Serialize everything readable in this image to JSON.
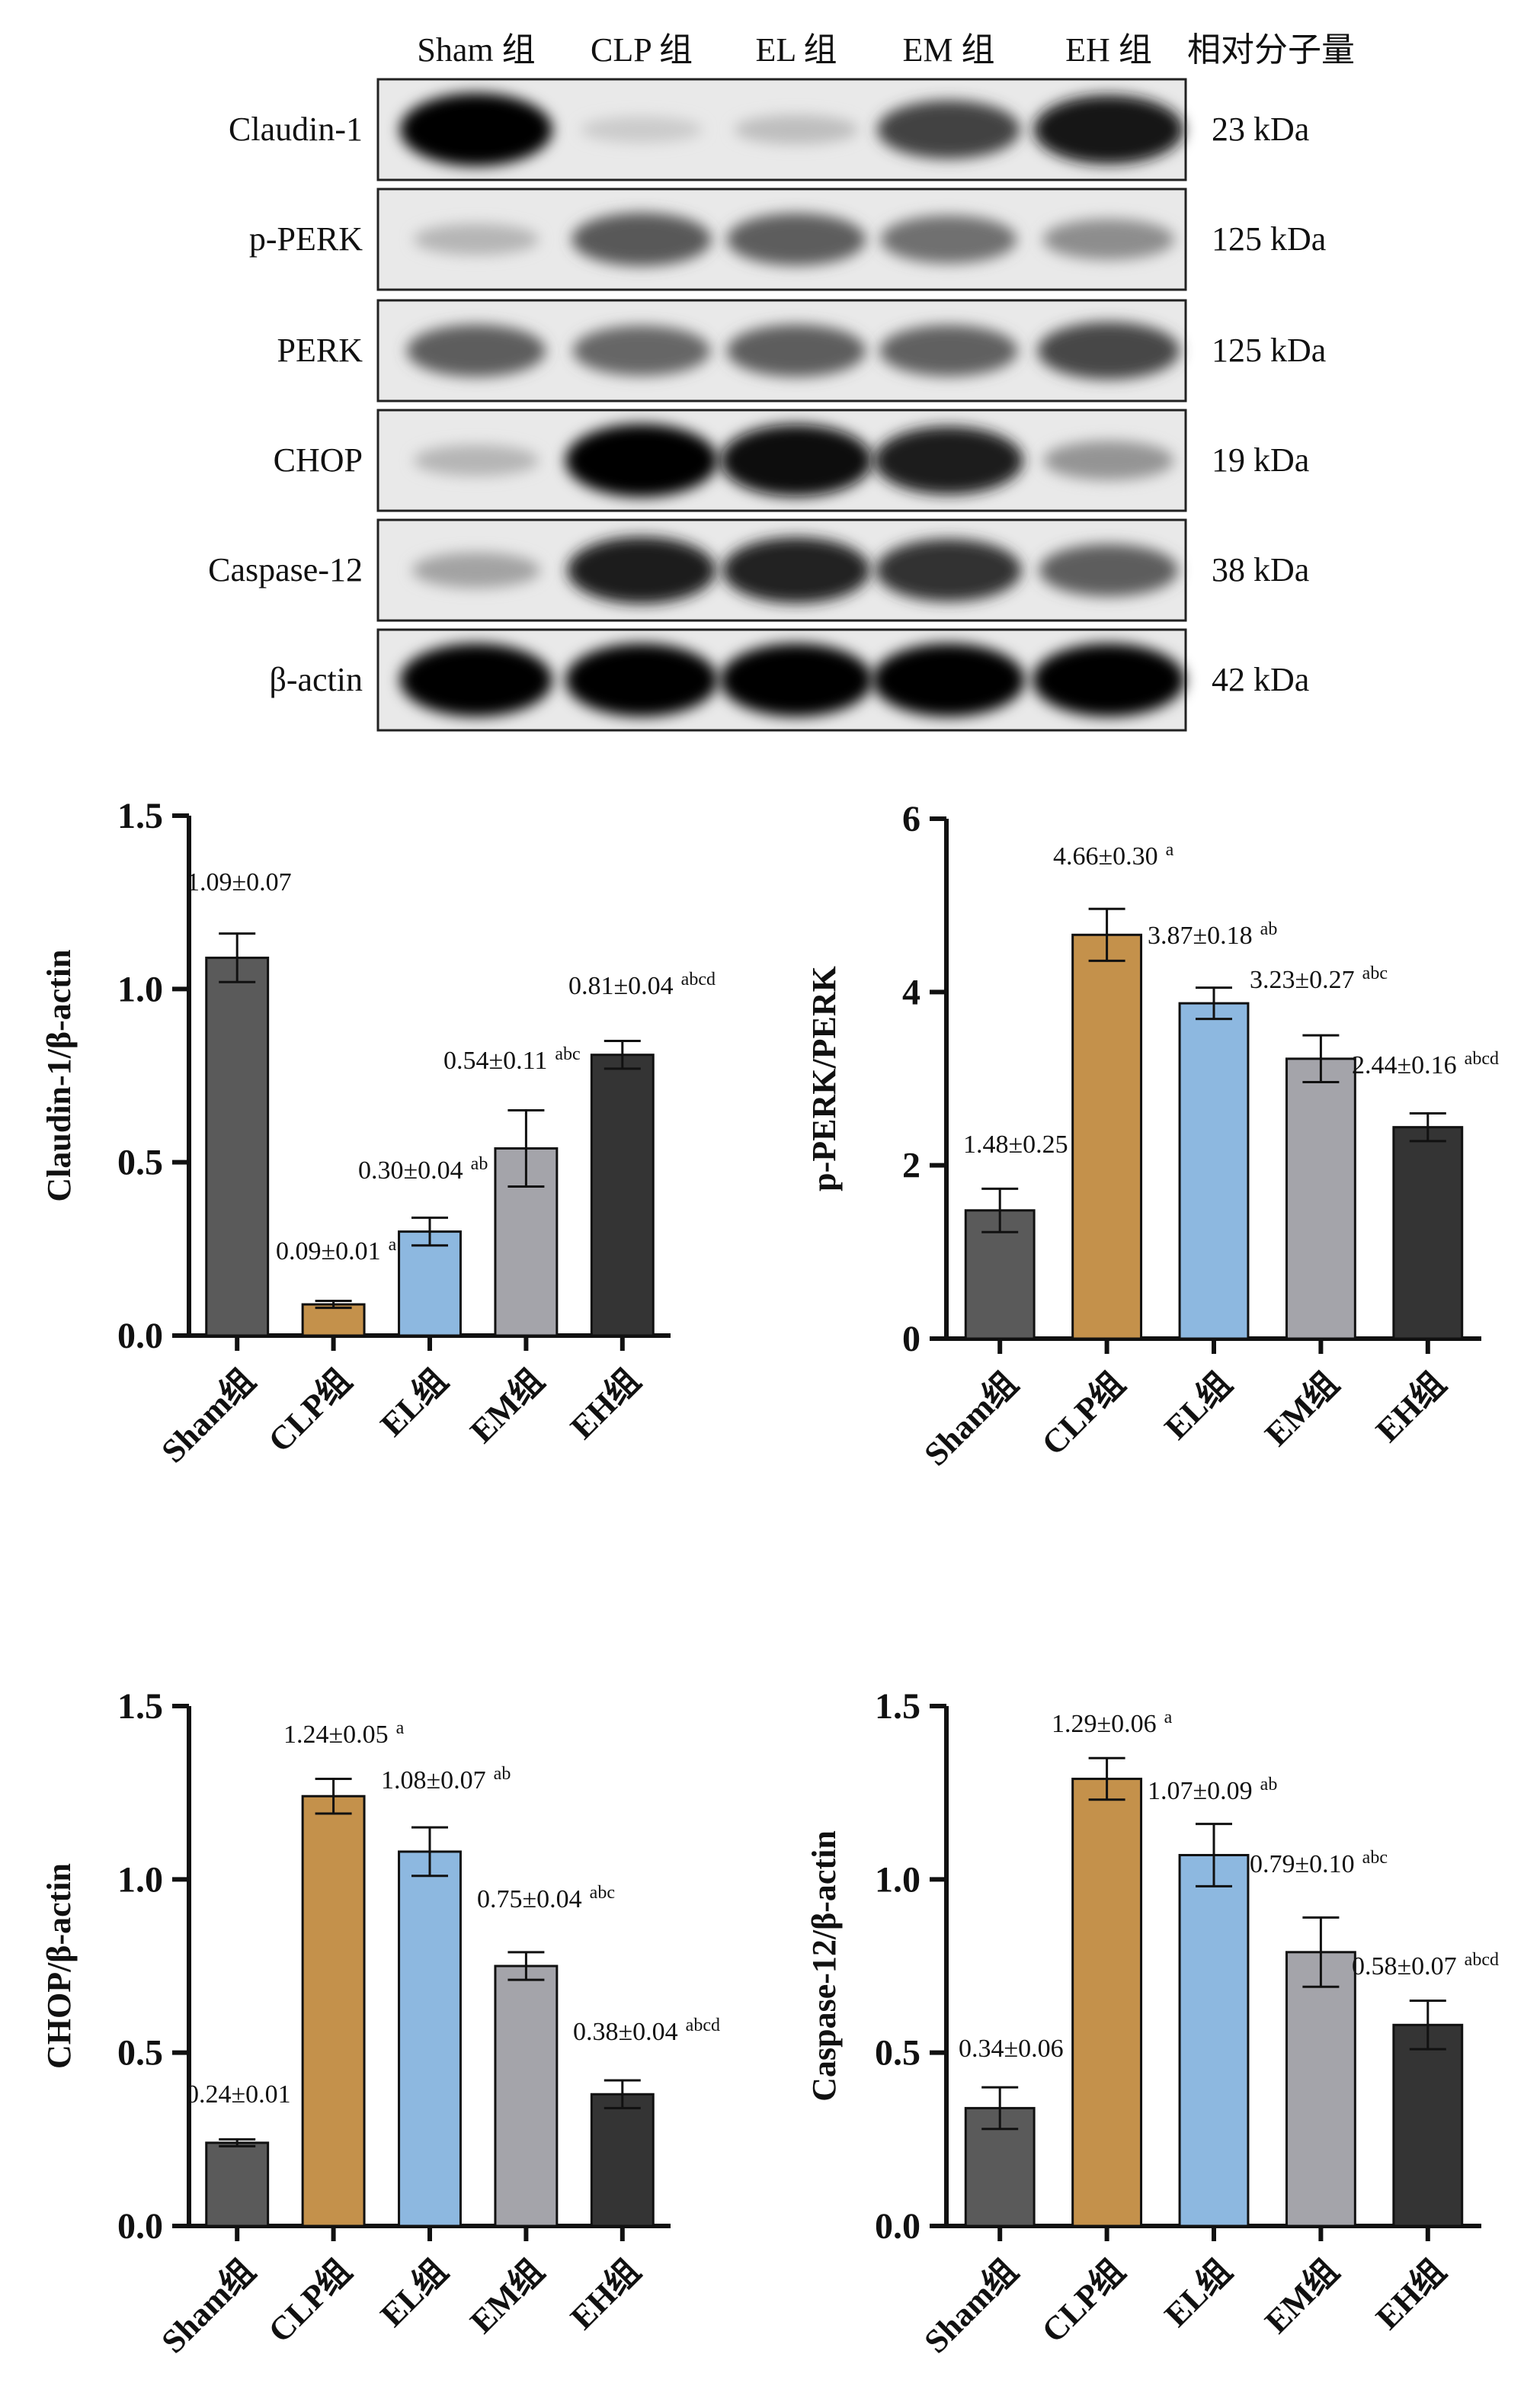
{
  "blot": {
    "groups": [
      "Sham 组",
      "CLP 组",
      "EL 组",
      "EM 组",
      "EH 组"
    ],
    "mw_header": "相对分子量",
    "rows": [
      {
        "protein": "Claudin-1",
        "mw": "23 kDa",
        "intensity": [
          1.0,
          0.1,
          0.16,
          0.72,
          0.92
        ]
      },
      {
        "protein": "p-PERK",
        "mw": "125 kDa",
        "intensity": [
          0.2,
          0.62,
          0.6,
          0.52,
          0.38
        ]
      },
      {
        "protein": "PERK",
        "mw": "125 kDa",
        "intensity": [
          0.6,
          0.56,
          0.6,
          0.58,
          0.7
        ]
      },
      {
        "protein": "CHOP",
        "mw": "19 kDa",
        "intensity": [
          0.2,
          1.0,
          0.98,
          0.9,
          0.35
        ]
      },
      {
        "protein": "Caspase-12",
        "mw": "38 kDa",
        "intensity": [
          0.28,
          0.88,
          0.86,
          0.8,
          0.6
        ]
      },
      {
        "protein": "β-actin",
        "mw": "42 kDa",
        "intensity": [
          1.0,
          1.0,
          1.0,
          1.0,
          1.0
        ]
      }
    ]
  },
  "colors": {
    "sham": "#5a5a5a",
    "clp": "#c4914b",
    "el": "#8db8e0",
    "em": "#a4a4aa",
    "eh": "#343434"
  },
  "chart_data": [
    {
      "type": "bar",
      "ylabel": "Claudin-1/β-actin",
      "categories": [
        "Sham组",
        "CLP组",
        "EL组",
        "EM组",
        "EH组"
      ],
      "values": [
        1.09,
        0.09,
        0.3,
        0.54,
        0.81
      ],
      "errors": [
        0.07,
        0.01,
        0.04,
        0.11,
        0.04
      ],
      "labels": [
        "1.09±0.07",
        "0.09±0.01",
        "0.30±0.04",
        "0.54±0.11",
        "0.81±0.04"
      ],
      "superscripts": [
        "",
        "a",
        "ab",
        "abc",
        "abcd"
      ],
      "ylim": [
        0,
        1.5
      ],
      "yticks": [
        "0.0",
        "0.5",
        "1.0",
        "1.5"
      ],
      "ytick_values": [
        0,
        0.5,
        1.0,
        1.5
      ]
    },
    {
      "type": "bar",
      "ylabel": "p-PERK/PERK",
      "categories": [
        "Sham组",
        "CLP组",
        "EL组",
        "EM组",
        "EH组"
      ],
      "values": [
        1.48,
        4.66,
        3.87,
        3.23,
        2.44
      ],
      "errors": [
        0.25,
        0.3,
        0.18,
        0.27,
        0.16
      ],
      "labels": [
        "1.48±0.25",
        "4.66±0.30",
        "3.87±0.18",
        "3.23±0.27",
        "2.44±0.16"
      ],
      "superscripts": [
        "",
        "a",
        "ab",
        "abc",
        "abcd"
      ],
      "ylim": [
        0,
        6
      ],
      "yticks": [
        "0",
        "2",
        "4",
        "6"
      ],
      "ytick_values": [
        0,
        2,
        4,
        6
      ]
    },
    {
      "type": "bar",
      "ylabel": "CHOP/β-actin",
      "categories": [
        "Sham组",
        "CLP组",
        "EL组",
        "EM组",
        "EH组"
      ],
      "values": [
        0.24,
        1.24,
        1.08,
        0.75,
        0.38
      ],
      "errors": [
        0.01,
        0.05,
        0.07,
        0.04,
        0.04
      ],
      "labels": [
        "0.24±0.01",
        "1.24±0.05",
        "1.08±0.07",
        "0.75±0.04",
        "0.38±0.04"
      ],
      "superscripts": [
        "",
        "a",
        "ab",
        "abc",
        "abcd"
      ],
      "ylim": [
        0,
        1.5
      ],
      "yticks": [
        "0.0",
        "0.5",
        "1.0",
        "1.5"
      ],
      "ytick_values": [
        0,
        0.5,
        1.0,
        1.5
      ]
    },
    {
      "type": "bar",
      "ylabel": "Caspase-12/β-actin",
      "categories": [
        "Sham组",
        "CLP组",
        "EL组",
        "EM组",
        "EH组"
      ],
      "values": [
        0.34,
        1.29,
        1.07,
        0.79,
        0.58
      ],
      "errors": [
        0.06,
        0.06,
        0.09,
        0.1,
        0.07
      ],
      "labels": [
        "0.34±0.06",
        "1.29±0.06",
        "1.07±0.09",
        "0.79±0.10",
        "0.58±0.07"
      ],
      "superscripts": [
        "",
        "a",
        "ab",
        "abc",
        "abcd"
      ],
      "ylim": [
        0,
        1.5
      ],
      "yticks": [
        "0.0",
        "0.5",
        "1.0",
        "1.5"
      ],
      "ytick_values": [
        0,
        0.5,
        1.0,
        1.5
      ]
    }
  ]
}
